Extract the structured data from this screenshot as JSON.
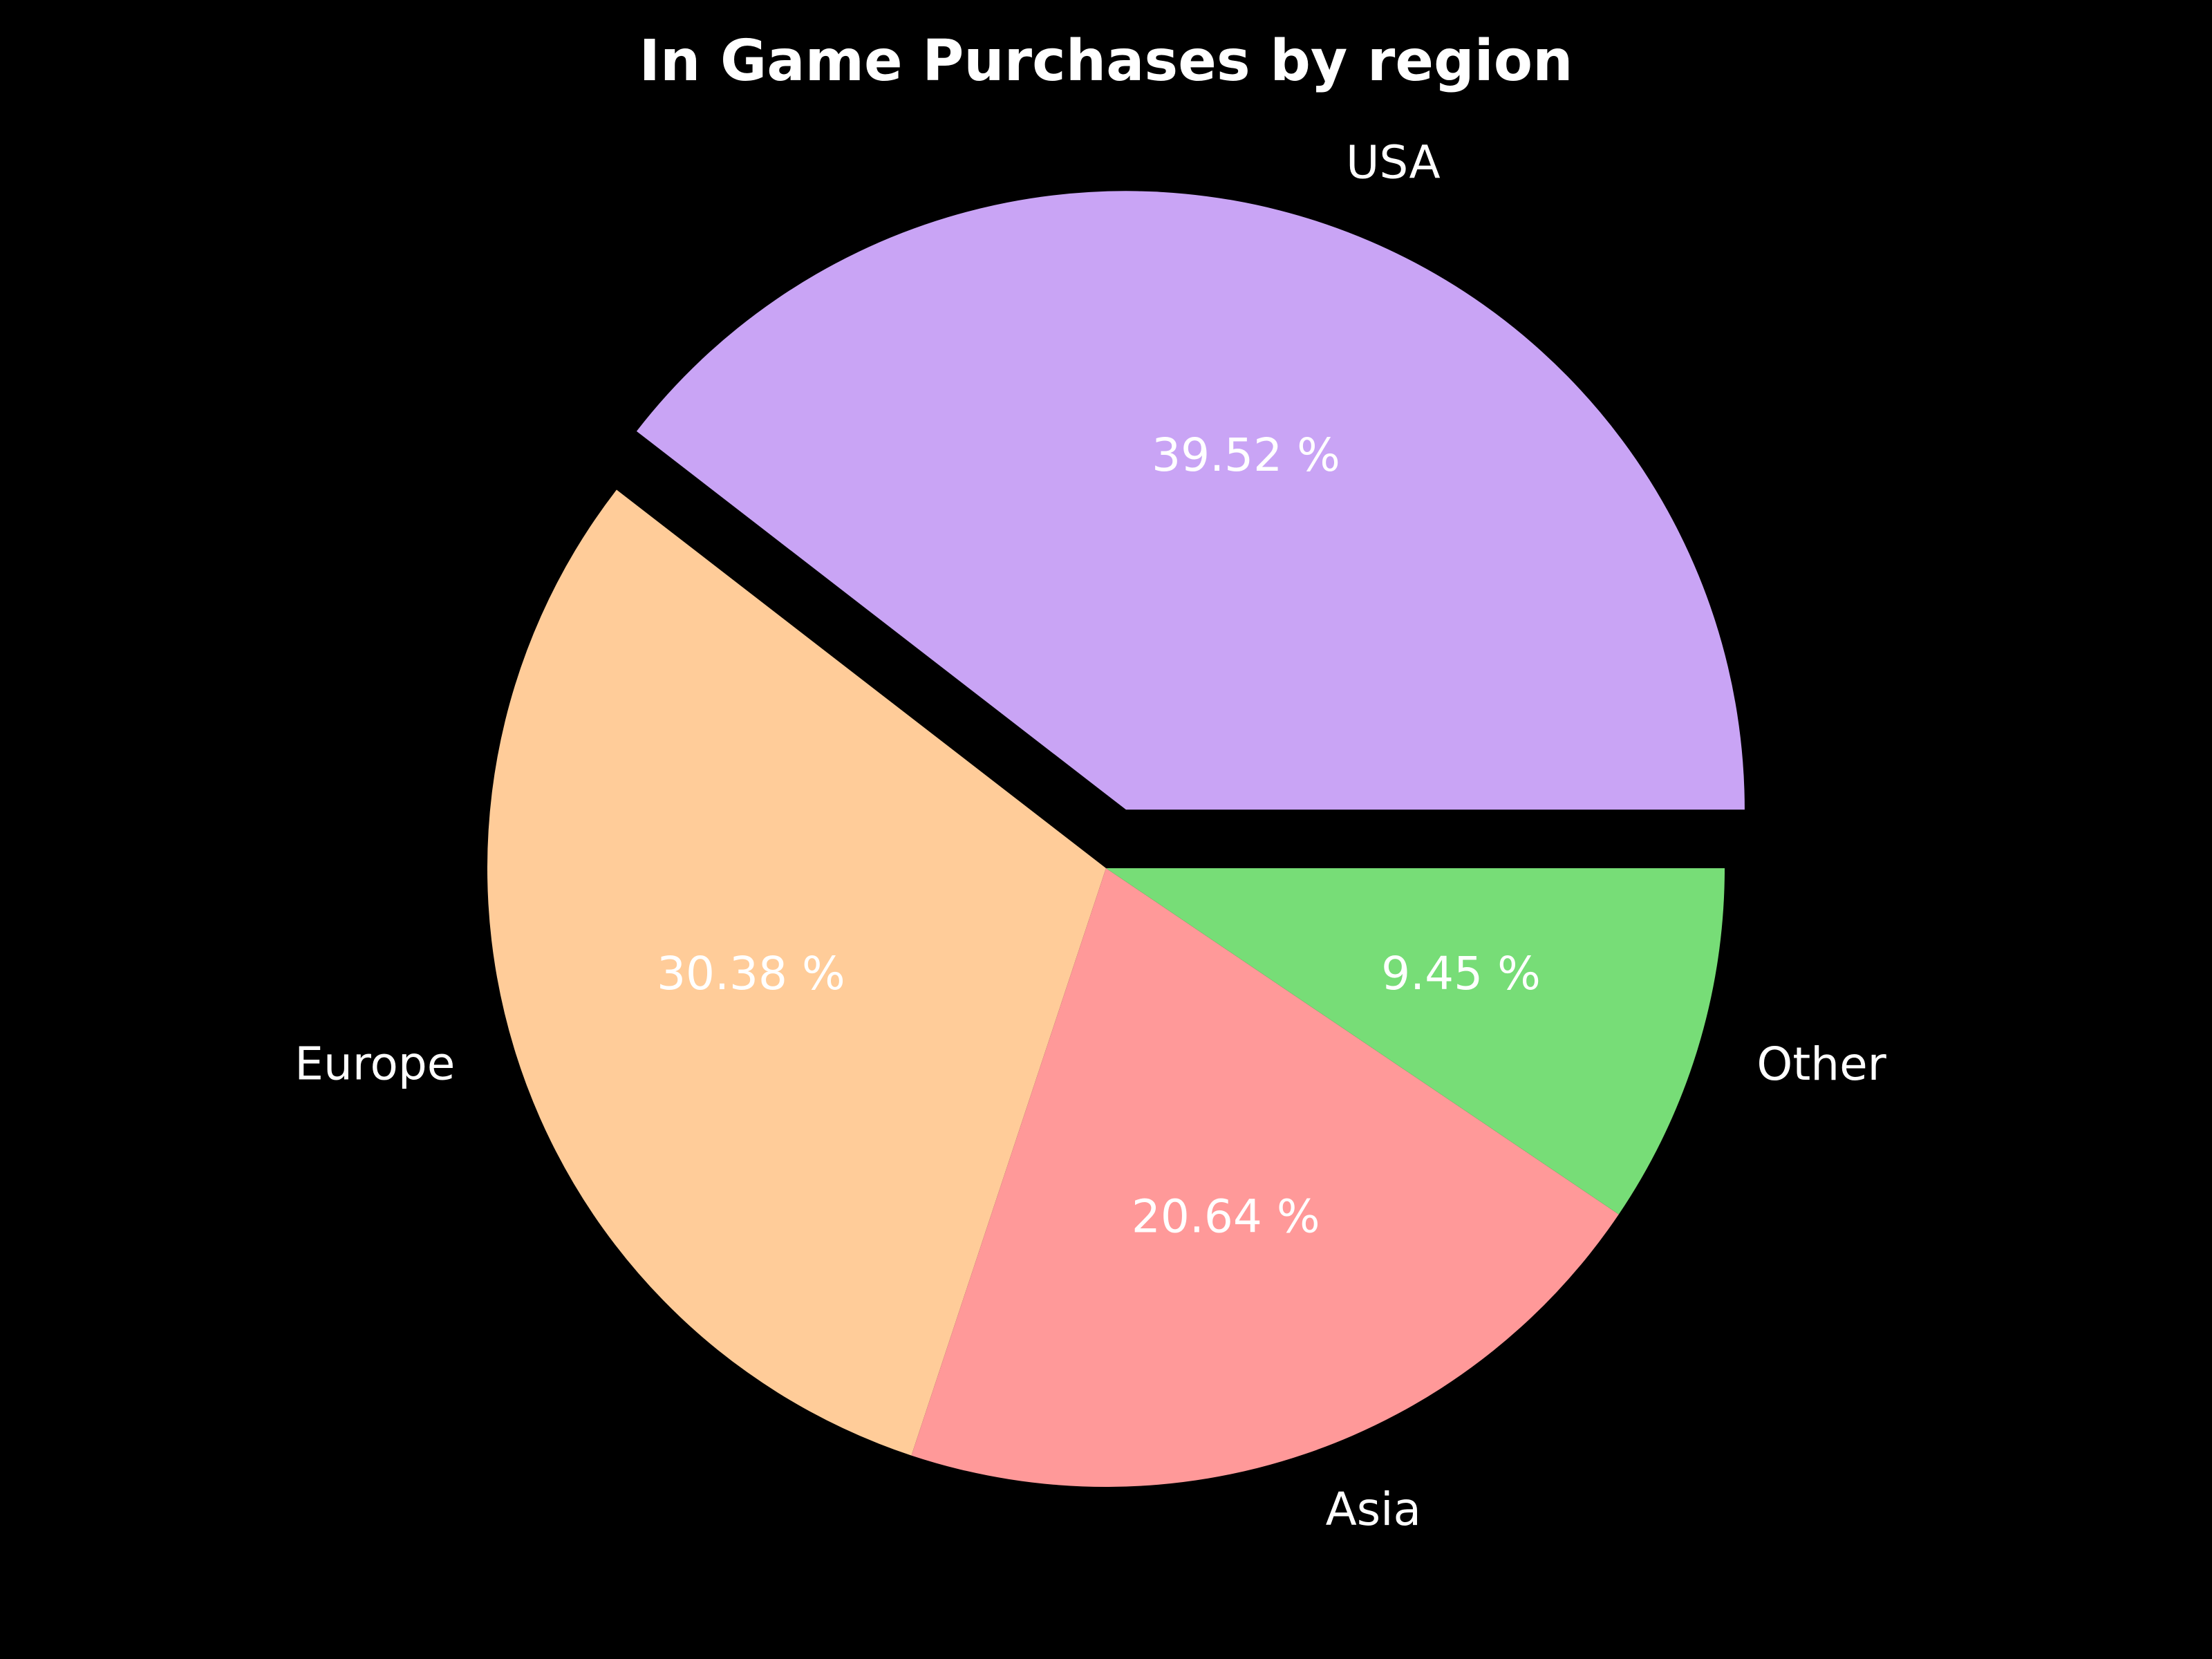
{
  "chart_data": {
    "type": "pie",
    "title": "In Game Purchases by region",
    "categories": [
      "USA",
      "Europe",
      "Asia",
      "Other"
    ],
    "values": [
      39.52,
      30.38,
      20.64,
      9.45
    ],
    "value_labels": [
      "39.52 %",
      "30.38 %",
      "20.64 %",
      "9.45 %"
    ],
    "colors": [
      "#c9a4f5",
      "#ffcc99",
      "#ff9999",
      "#77dd77"
    ],
    "exploded": [
      "USA"
    ],
    "start_angle_deg": 0,
    "direction": "counterclockwise",
    "background": "#000000",
    "text_color": "#ffffff"
  }
}
